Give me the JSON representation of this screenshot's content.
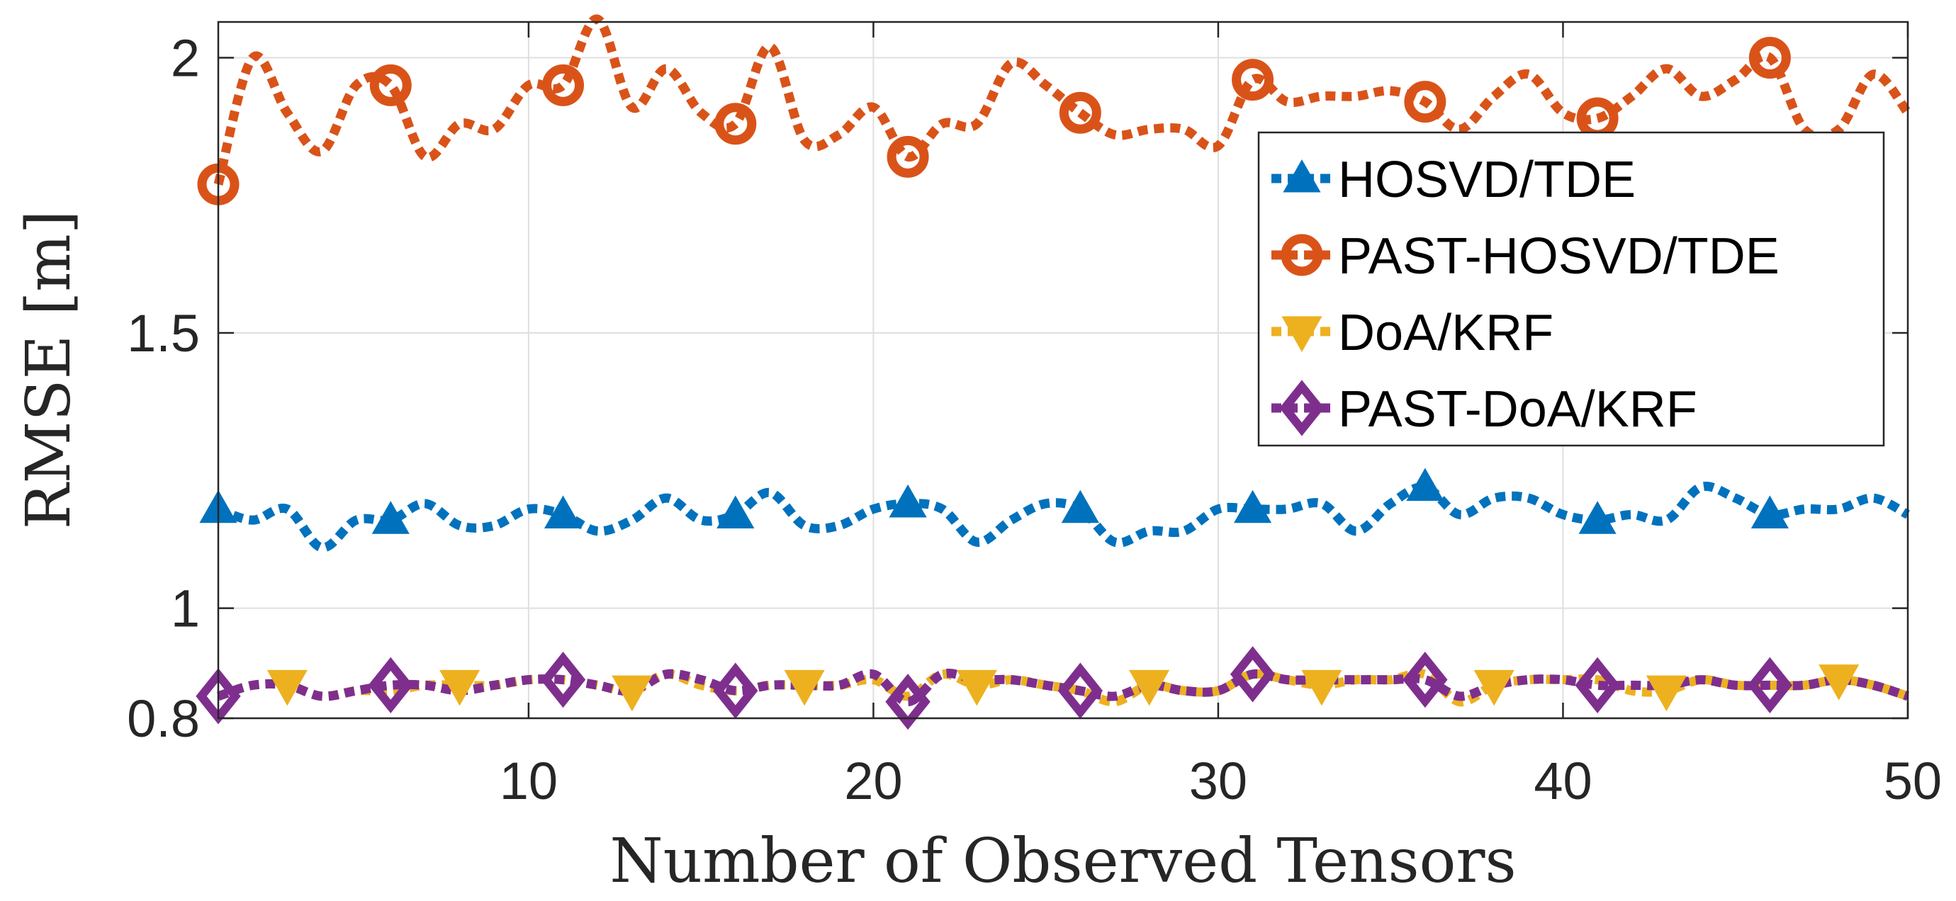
{
  "chart_data": {
    "type": "line",
    "title": "",
    "xlabel": "Number of Observed Tensors",
    "ylabel": "RMSE [m]",
    "xlim": [
      1,
      50
    ],
    "ylim": [
      0.8,
      2.065
    ],
    "xticks": [
      10,
      20,
      30,
      40,
      50
    ],
    "yticks": [
      0.8,
      1,
      1.5,
      2
    ],
    "ytick_labels": [
      "0.8",
      "1",
      "1.5",
      "2"
    ],
    "grid": true,
    "legend_position": "top-right",
    "x": [
      1,
      2,
      3,
      4,
      5,
      6,
      7,
      8,
      9,
      10,
      11,
      12,
      13,
      14,
      15,
      16,
      17,
      18,
      19,
      20,
      21,
      22,
      23,
      24,
      25,
      26,
      27,
      28,
      29,
      30,
      31,
      32,
      33,
      34,
      35,
      36,
      37,
      38,
      39,
      40,
      41,
      42,
      43,
      44,
      45,
      46,
      47,
      48,
      49,
      50
    ],
    "series": [
      {
        "name": "HOSVD/TDE",
        "color": "#0072BD",
        "marker": "triangle-up",
        "marker_every": 5,
        "values": [
          1.18,
          1.16,
          1.18,
          1.11,
          1.16,
          1.16,
          1.19,
          1.15,
          1.15,
          1.18,
          1.17,
          1.14,
          1.16,
          1.2,
          1.16,
          1.17,
          1.21,
          1.15,
          1.15,
          1.18,
          1.19,
          1.18,
          1.12,
          1.16,
          1.19,
          1.18,
          1.12,
          1.14,
          1.14,
          1.18,
          1.18,
          1.18,
          1.19,
          1.14,
          1.19,
          1.22,
          1.17,
          1.2,
          1.2,
          1.17,
          1.16,
          1.17,
          1.16,
          1.22,
          1.2,
          1.17,
          1.18,
          1.18,
          1.2,
          1.17
        ]
      },
      {
        "name": "PAST-HOSVD/TDE",
        "color": "#D95319",
        "marker": "circle",
        "marker_every": 5,
        "values": [
          1.77,
          2.0,
          1.9,
          1.83,
          1.95,
          1.95,
          1.82,
          1.88,
          1.87,
          1.95,
          1.95,
          2.07,
          1.91,
          1.98,
          1.9,
          1.88,
          2.02,
          1.85,
          1.86,
          1.91,
          1.82,
          1.88,
          1.88,
          1.99,
          1.95,
          1.9,
          1.86,
          1.87,
          1.87,
          1.84,
          1.96,
          1.92,
          1.93,
          1.93,
          1.94,
          1.92,
          1.87,
          1.93,
          1.97,
          1.9,
          1.89,
          1.93,
          1.98,
          1.93,
          1.96,
          2.0,
          1.87,
          1.87,
          1.97,
          1.9
        ]
      },
      {
        "name": "DoA/KRF",
        "color": "#EDB120",
        "marker": "triangle-down",
        "marker_offset": 2,
        "marker_every": 5,
        "values": [
          0.84,
          0.86,
          0.86,
          0.84,
          0.85,
          0.85,
          0.86,
          0.86,
          0.86,
          0.87,
          0.87,
          0.86,
          0.85,
          0.88,
          0.86,
          0.85,
          0.86,
          0.86,
          0.86,
          0.87,
          0.84,
          0.88,
          0.86,
          0.87,
          0.86,
          0.85,
          0.83,
          0.86,
          0.85,
          0.85,
          0.88,
          0.87,
          0.86,
          0.87,
          0.87,
          0.88,
          0.83,
          0.86,
          0.87,
          0.87,
          0.87,
          0.85,
          0.85,
          0.87,
          0.86,
          0.86,
          0.86,
          0.87,
          0.86,
          0.84
        ]
      },
      {
        "name": "PAST-DoA/KRF",
        "color": "#7E2F8E",
        "marker": "diamond",
        "marker_every": 5,
        "values": [
          0.84,
          0.86,
          0.86,
          0.84,
          0.85,
          0.86,
          0.86,
          0.85,
          0.86,
          0.87,
          0.87,
          0.86,
          0.85,
          0.88,
          0.87,
          0.85,
          0.86,
          0.86,
          0.86,
          0.88,
          0.83,
          0.88,
          0.87,
          0.87,
          0.86,
          0.85,
          0.84,
          0.86,
          0.85,
          0.85,
          0.88,
          0.87,
          0.87,
          0.87,
          0.87,
          0.87,
          0.84,
          0.86,
          0.87,
          0.87,
          0.86,
          0.86,
          0.86,
          0.87,
          0.86,
          0.86,
          0.86,
          0.87,
          0.86,
          0.84
        ]
      }
    ]
  }
}
